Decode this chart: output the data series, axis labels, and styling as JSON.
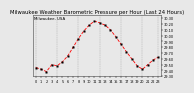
{
  "title": "Milwaukee Weather Barometric Pressure per Hour (Last 24 Hours)",
  "subtitle": "Milwaukee, USA",
  "hours": [
    0,
    1,
    2,
    3,
    4,
    5,
    6,
    7,
    8,
    9,
    10,
    11,
    12,
    13,
    14,
    15,
    16,
    17,
    18,
    19,
    20,
    21,
    22,
    23
  ],
  "pressure": [
    29.45,
    29.42,
    29.38,
    29.5,
    29.48,
    29.55,
    29.65,
    29.8,
    29.95,
    30.08,
    30.18,
    30.25,
    30.22,
    30.18,
    30.1,
    29.98,
    29.85,
    29.72,
    29.6,
    29.48,
    29.42,
    29.5,
    29.58,
    29.63
  ],
  "line_color": "#ff0000",
  "marker_color": "#000000",
  "bg_color": "#e8e8e8",
  "grid_color": "#888888",
  "ylim": [
    29.3,
    30.35
  ],
  "ytick_step": 0.1,
  "yticks": [
    29.3,
    29.4,
    29.5,
    29.6,
    29.7,
    29.8,
    29.9,
    30.0,
    30.1,
    30.2,
    30.3
  ],
  "title_fontsize": 3.8,
  "subtitle_fontsize": 2.8,
  "tick_fontsize": 2.5,
  "line_width": 0.6,
  "marker_size": 1.2,
  "vgrid_positions": [
    0,
    4,
    8,
    12,
    16,
    20,
    23
  ]
}
